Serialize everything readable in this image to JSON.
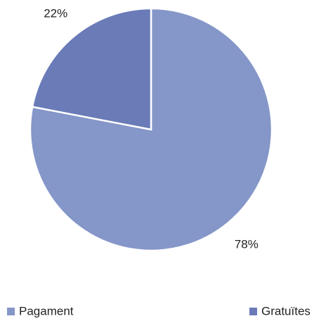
{
  "chart_data": {
    "type": "pie",
    "categories": [
      "Pagament",
      "Gratuïtes"
    ],
    "values": [
      78,
      22
    ],
    "value_labels": [
      "78%",
      "22%"
    ],
    "colors": [
      "#8596c8",
      "#6a7bb8"
    ],
    "legend": "bottom"
  }
}
